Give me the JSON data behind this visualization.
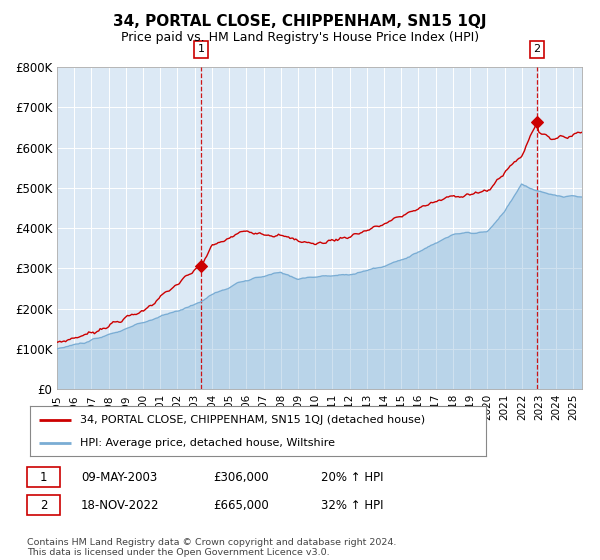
{
  "title": "34, PORTAL CLOSE, CHIPPENHAM, SN15 1QJ",
  "subtitle": "Price paid vs. HM Land Registry's House Price Index (HPI)",
  "title_fontsize": 11,
  "subtitle_fontsize": 9,
  "bg_color": "#dce9f5",
  "red_color": "#cc0000",
  "blue_color": "#7aadd4",
  "ylim": [
    0,
    800000
  ],
  "yticks": [
    0,
    100000,
    200000,
    300000,
    400000,
    500000,
    600000,
    700000,
    800000
  ],
  "ytick_labels": [
    "£0",
    "£100K",
    "£200K",
    "£300K",
    "£400K",
    "£500K",
    "£600K",
    "£700K",
    "£800K"
  ],
  "xlim_start": 1995.0,
  "xlim_end": 2025.5,
  "xtick_years": [
    1995,
    1996,
    1997,
    1998,
    1999,
    2000,
    2001,
    2002,
    2003,
    2004,
    2005,
    2006,
    2007,
    2008,
    2009,
    2010,
    2011,
    2012,
    2013,
    2014,
    2015,
    2016,
    2017,
    2018,
    2019,
    2020,
    2021,
    2022,
    2023,
    2024,
    2025
  ],
  "legend_red": "34, PORTAL CLOSE, CHIPPENHAM, SN15 1QJ (detached house)",
  "legend_blue": "HPI: Average price, detached house, Wiltshire",
  "point1_x": 2003.36,
  "point1_y": 306000,
  "point1_label": "1",
  "point1_date": "09-MAY-2003",
  "point1_price": "£306,000",
  "point1_hpi": "20% ↑ HPI",
  "point2_x": 2022.88,
  "point2_y": 665000,
  "point2_label": "2",
  "point2_date": "18-NOV-2022",
  "point2_price": "£665,000",
  "point2_hpi": "32% ↑ HPI",
  "copyright_text": "Contains HM Land Registry data © Crown copyright and database right 2024.\nThis data is licensed under the Open Government Licence v3.0."
}
